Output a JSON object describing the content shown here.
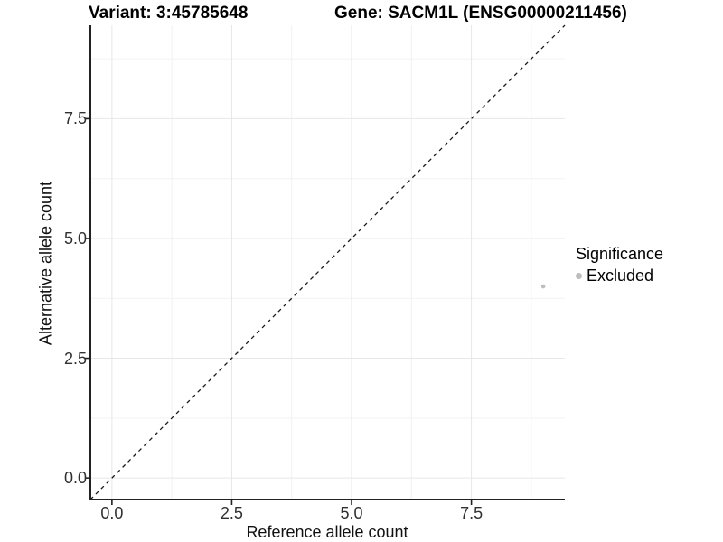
{
  "header": {
    "variant_title": "Variant: 3:45785648",
    "gene_title": "Gene: SACM1L (ENSG00000211456)"
  },
  "chart_data": {
    "type": "scatter",
    "title": "Variant: 3:45785648    Gene: SACM1L (ENSG00000211456)",
    "xlabel": "Reference allele count",
    "ylabel": "Alternative allele count",
    "xlim": [
      -0.45,
      9.45
    ],
    "ylim": [
      -0.45,
      9.45
    ],
    "tick_values": [
      0,
      2.5,
      5,
      7.5
    ],
    "tick_labels": [
      "0.0",
      "2.5",
      "5.0",
      "7.5"
    ],
    "minor_breaks": [
      1.25,
      3.75,
      6.25,
      8.75
    ],
    "grid": "major and minor gridlines, light grey on white",
    "reference_line": {
      "description": "identity line y = x",
      "style": "dashed",
      "color": "#1a1a1a",
      "from": [
        -0.45,
        -0.45
      ],
      "to": [
        9.45,
        9.45
      ]
    },
    "series": [
      {
        "name": "Excluded",
        "color": "#bebebe",
        "points": [
          {
            "x": 9,
            "y": 4
          }
        ]
      }
    ],
    "legend": {
      "title": "Significance",
      "position": "right",
      "entries": [
        {
          "label": "Excluded",
          "color": "#bebebe"
        }
      ]
    },
    "colors": {
      "axis_line": "#222222",
      "tick_text": "#303030",
      "grid_major": "#e7e7e7",
      "grid_minor": "#f2f2f2",
      "background": "#ffffff"
    }
  }
}
